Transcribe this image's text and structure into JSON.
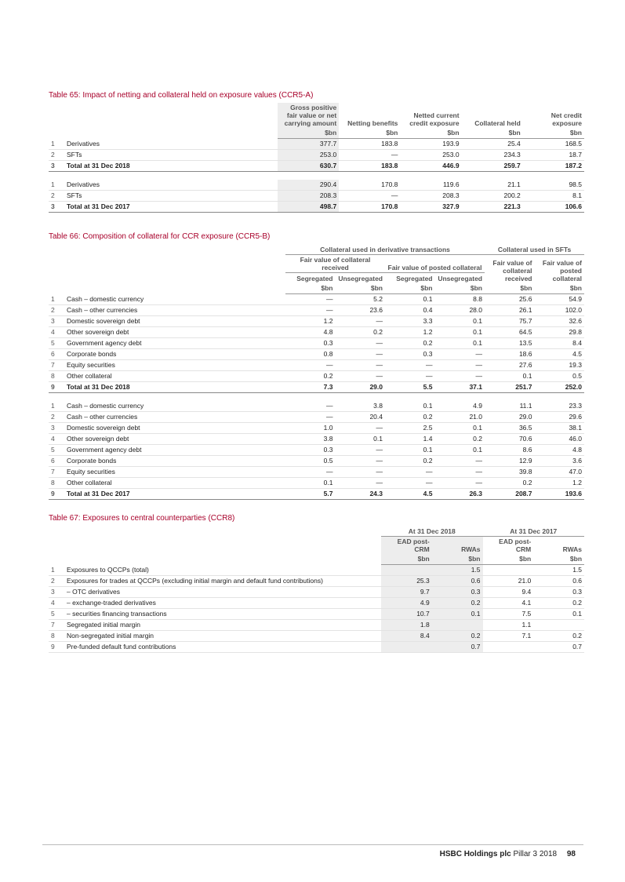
{
  "tables": [
    {
      "title": "Table 65: Impact of netting and collateral held on exposure values (CCR5-A)",
      "header_rows": [
        [
          "Gross positive fair value or net carrying amount",
          "Netting benefits",
          "Netted current credit exposure",
          "Collateral held",
          "Net credit exposure"
        ]
      ],
      "units": [
        "$bn",
        "$bn",
        "$bn",
        "$bn",
        "$bn"
      ],
      "sections": [
        [
          [
            "1",
            "Derivatives",
            "377.7",
            "183.8",
            "193.9",
            "25.4",
            "168.5"
          ],
          [
            "2",
            "SFTs",
            "253.0",
            "—",
            "253.0",
            "234.3",
            "18.7"
          ],
          [
            "3",
            "Total at 31 Dec 2018",
            "630.7",
            "183.8",
            "446.9",
            "259.7",
            "187.2"
          ]
        ],
        [
          [
            "1",
            "Derivatives",
            "290.4",
            "170.8",
            "119.6",
            "21.1",
            "98.5"
          ],
          [
            "2",
            "SFTs",
            "208.3",
            "—",
            "208.3",
            "200.2",
            "8.1"
          ],
          [
            "3",
            "Total at 31 Dec 2017",
            "498.7",
            "170.8",
            "327.9",
            "221.3",
            "106.6"
          ]
        ]
      ]
    },
    {
      "title": "Table 66: Composition of collateral for CCR exposure (CCR5-B)",
      "header_rows": [
        [
          "Collateral used in derivative transactions",
          "Collateral used in SFTs"
        ],
        [
          "Fair value of collateral received",
          "Fair value of posted collateral",
          "Fair value of collateral received",
          "Fair value of posted collateral"
        ],
        [
          "Segregated",
          "Unsegregated",
          "Segregated",
          "Unsegregated"
        ]
      ],
      "units": [
        "$bn",
        "$bn",
        "$bn",
        "$bn",
        "$bn",
        "$bn"
      ],
      "sections": [
        [
          [
            "1",
            "Cash – domestic currency",
            "—",
            "5.2",
            "0.1",
            "8.8",
            "25.6",
            "54.9"
          ],
          [
            "2",
            "Cash – other currencies",
            "—",
            "23.6",
            "0.4",
            "28.0",
            "26.1",
            "102.0"
          ],
          [
            "3",
            "Domestic sovereign debt",
            "1.2",
            "—",
            "3.3",
            "0.1",
            "75.7",
            "32.6"
          ],
          [
            "4",
            "Other sovereign debt",
            "4.8",
            "0.2",
            "1.2",
            "0.1",
            "64.5",
            "29.8"
          ],
          [
            "5",
            "Government agency debt",
            "0.3",
            "—",
            "0.2",
            "0.1",
            "13.5",
            "8.4"
          ],
          [
            "6",
            "Corporate bonds",
            "0.8",
            "—",
            "0.3",
            "—",
            "18.6",
            "4.5"
          ],
          [
            "7",
            "Equity securities",
            "—",
            "—",
            "—",
            "—",
            "27.6",
            "19.3"
          ],
          [
            "8",
            "Other collateral",
            "0.2",
            "—",
            "—",
            "—",
            "0.1",
            "0.5"
          ],
          [
            "9",
            "Total at 31 Dec 2018",
            "7.3",
            "29.0",
            "5.5",
            "37.1",
            "251.7",
            "252.0"
          ]
        ],
        [
          [
            "1",
            "Cash – domestic currency",
            "—",
            "3.8",
            "0.1",
            "4.9",
            "11.1",
            "23.3"
          ],
          [
            "2",
            "Cash – other currencies",
            "—",
            "20.4",
            "0.2",
            "21.0",
            "29.0",
            "29.6"
          ],
          [
            "3",
            "Domestic sovereign debt",
            "1.0",
            "—",
            "2.5",
            "0.1",
            "36.5",
            "38.1"
          ],
          [
            "4",
            "Other sovereign debt",
            "3.8",
            "0.1",
            "1.4",
            "0.2",
            "70.6",
            "46.0"
          ],
          [
            "5",
            "Government agency debt",
            "0.3",
            "—",
            "0.1",
            "0.1",
            "8.6",
            "4.8"
          ],
          [
            "6",
            "Corporate bonds",
            "0.5",
            "—",
            "0.2",
            "—",
            "12.9",
            "3.6"
          ],
          [
            "7",
            "Equity securities",
            "—",
            "—",
            "—",
            "—",
            "39.8",
            "47.0"
          ],
          [
            "8",
            "Other collateral",
            "0.1",
            "—",
            "—",
            "—",
            "0.2",
            "1.2"
          ],
          [
            "9",
            "Total at 31 Dec 2017",
            "5.7",
            "24.3",
            "4.5",
            "26.3",
            "208.7",
            "193.6"
          ]
        ]
      ]
    },
    {
      "title": "Table 67: Exposures to central counterparties (CCR8)",
      "header_rows": [
        [
          "At 31 Dec 2018",
          "At 31 Dec 2017"
        ],
        [
          "EAD post-CRM",
          "RWAs",
          "EAD post-CRM",
          "RWAs"
        ]
      ],
      "units": [
        "$bn",
        "$bn",
        "$bn",
        "$bn"
      ],
      "sections": [
        [
          [
            "1",
            "Exposures to QCCPs (total)",
            null,
            "1.5",
            null,
            "1.5"
          ],
          [
            "2",
            "Exposures for trades at QCCPs (excluding initial margin and default fund contributions)",
            "25.3",
            "0.6",
            "21.0",
            "0.6"
          ],
          [
            "3",
            "– OTC derivatives",
            "9.7",
            "0.3",
            "9.4",
            "0.3"
          ],
          [
            "4",
            "– exchange-traded derivatives",
            "4.9",
            "0.2",
            "4.1",
            "0.2"
          ],
          [
            "5",
            "– securities financing transactions",
            "10.7",
            "0.1",
            "7.5",
            "0.1"
          ],
          [
            "7",
            "Segregated initial margin",
            "1.8",
            null,
            "1.1",
            null
          ],
          [
            "8",
            "Non-segregated initial margin",
            "8.4",
            "0.2",
            "7.1",
            "0.2"
          ],
          [
            "9",
            "Pre-funded default fund contributions",
            null,
            "0.7",
            null,
            "0.7"
          ]
        ]
      ]
    }
  ],
  "footer": {
    "publisher": "HSBC Holdings plc",
    "report": "Pillar 3 2018",
    "page": "98"
  }
}
